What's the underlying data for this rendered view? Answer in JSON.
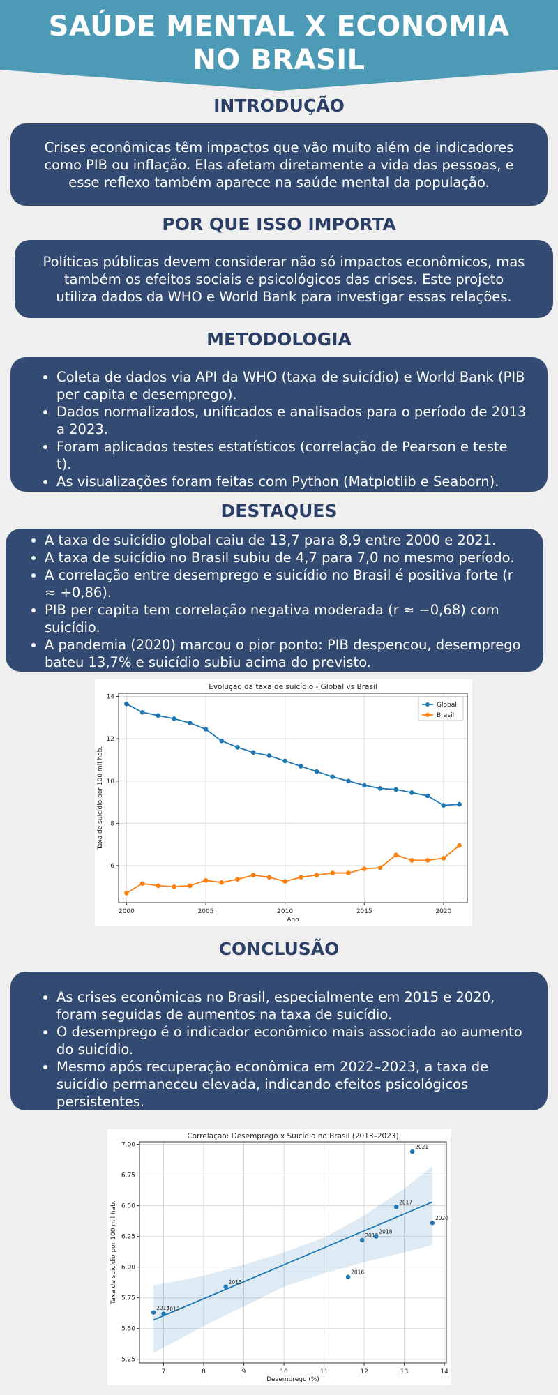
{
  "header": {
    "title": "SAÚDE MENTAL X ECONOMIA\nNO BRASIL"
  },
  "colors": {
    "header_bg": "#4c9ab5",
    "card_bg": "#334b72",
    "section_title": "#2b3f66",
    "page_bg": "#efefef",
    "global_series": "#1f77b4",
    "brasil_series": "#ff7f0e"
  },
  "sections": {
    "intro": {
      "title": "INTRODUÇÃO",
      "text": "Crises econômicas têm impactos que vão muito além de indicadores como PIB ou inflação. Elas afetam diretamente a vida das pessoas, e esse reflexo também aparece na saúde mental da população."
    },
    "why": {
      "title": "POR QUE ISSO IMPORTA",
      "text": "Políticas públicas devem considerar não só impactos econômicos, mas também os efeitos sociais e psicológicos das crises. Este projeto utiliza dados da WHO e World Bank para investigar essas relações."
    },
    "method": {
      "title": "METODOLOGIA",
      "items": [
        "Coleta de dados via API da WHO (taxa de suicídio) e World Bank (PIB per capita e desemprego).",
        "Dados normalizados, unificados e analisados para o período de 2013 a 2023.",
        "Foram aplicados testes estatísticos (correlação de Pearson e teste t).",
        "As visualizações foram feitas com Python (Matplotlib e Seaborn)."
      ]
    },
    "highlights": {
      "title": "DESTAQUES",
      "items": [
        "A taxa de suicídio global caiu de 13,7 para 8,9 entre 2000 e 2021.",
        "A taxa de suicídio no Brasil subiu de 4,7 para 7,0 no mesmo período.",
        "A correlação entre desemprego e suicídio no Brasil é positiva forte (r ≈ +0,86).",
        "PIB per capita tem correlação negativa moderada (r ≈ −0,68) com suicídio.",
        "A pandemia (2020) marcou o pior ponto: PIB despencou, desemprego bateu 13,7% e suicídio subiu acima do previsto."
      ]
    },
    "conclusion": {
      "title": "CONCLUSÃO",
      "items": [
        "As crises econômicas no Brasil, especialmente em 2015 e 2020, foram seguidas de aumentos na taxa de suicídio.",
        "O desemprego é o indicador econômico mais associado ao aumento do suicídio.",
        "Mesmo após recuperação econômica em 2022–2023, a taxa de suicídio permaneceu elevada, indicando efeitos psicológicos persistentes."
      ]
    }
  },
  "chart_data": [
    {
      "type": "line",
      "title": "Evolução da taxa de suicídio - Global vs Brasil",
      "xlabel": "Ano",
      "ylabel": "Taxa de suicídio por 100 mil hab.",
      "xlim": [
        1999.5,
        2021.5
      ],
      "ylim": [
        4.25,
        14.15
      ],
      "xticks": [
        2000,
        2005,
        2010,
        2015,
        2020
      ],
      "yticks": [
        6,
        8,
        10,
        12,
        14
      ],
      "grid": true,
      "legend": "top-right",
      "x": [
        2000,
        2001,
        2002,
        2003,
        2004,
        2005,
        2006,
        2007,
        2008,
        2009,
        2010,
        2011,
        2012,
        2013,
        2014,
        2015,
        2016,
        2017,
        2018,
        2019,
        2020,
        2021
      ],
      "series": [
        {
          "name": "Global",
          "color": "#1f77b4",
          "values": [
            13.65,
            13.25,
            13.1,
            12.95,
            12.75,
            12.45,
            11.9,
            11.6,
            11.35,
            11.2,
            10.95,
            10.7,
            10.45,
            10.2,
            10.0,
            9.8,
            9.65,
            9.6,
            9.45,
            9.3,
            8.85,
            8.9
          ]
        },
        {
          "name": "Brasil",
          "color": "#ff7f0e",
          "values": [
            4.7,
            5.15,
            5.05,
            5.0,
            5.05,
            5.3,
            5.2,
            5.35,
            5.55,
            5.45,
            5.25,
            5.45,
            5.55,
            5.65,
            5.65,
            5.85,
            5.9,
            6.5,
            6.25,
            6.25,
            6.35,
            6.95
          ]
        }
      ]
    },
    {
      "type": "scatter",
      "title": "Correlação: Desemprego x Suicídio no Brasil (2013–2023)",
      "xlabel": "Desemprego (%)",
      "ylabel": "Taxa de suicídio por 100 mil hab.",
      "xlim": [
        6.4,
        14.05
      ],
      "ylim": [
        5.22,
        7.02
      ],
      "xticks": [
        7,
        8,
        9,
        10,
        11,
        12,
        13,
        14
      ],
      "yticks": [
        5.25,
        5.5,
        5.75,
        6.0,
        6.25,
        6.5,
        6.75,
        7.0
      ],
      "ytick_labels": [
        "5.25",
        "5.50",
        "5.75",
        "6.00",
        "6.25",
        "6.50",
        "6.75",
        "7.00"
      ],
      "grid": true,
      "points": [
        {
          "label": "2014",
          "x": 6.75,
          "y": 5.63
        },
        {
          "label": "2013",
          "x": 7.0,
          "y": 5.62
        },
        {
          "label": "2015",
          "x": 8.55,
          "y": 5.84
        },
        {
          "label": "2016",
          "x": 11.6,
          "y": 5.92
        },
        {
          "label": "2019",
          "x": 11.95,
          "y": 6.22
        },
        {
          "label": "2018",
          "x": 12.3,
          "y": 6.25
        },
        {
          "label": "2017",
          "x": 12.8,
          "y": 6.49
        },
        {
          "label": "2021",
          "x": 13.2,
          "y": 6.94
        },
        {
          "label": "2020",
          "x": 13.7,
          "y": 6.36
        }
      ],
      "regression": {
        "x": [
          6.75,
          13.7
        ],
        "y": [
          5.57,
          6.53
        ]
      },
      "confidence_band": {
        "x": [
          6.75,
          8.0,
          9.0,
          10.0,
          11.0,
          12.0,
          13.0,
          13.7
        ],
        "upper": [
          5.85,
          5.93,
          6.02,
          6.12,
          6.24,
          6.42,
          6.64,
          6.82
        ],
        "lower": [
          5.3,
          5.52,
          5.68,
          5.84,
          5.95,
          6.04,
          6.12,
          6.18
        ]
      }
    }
  ]
}
